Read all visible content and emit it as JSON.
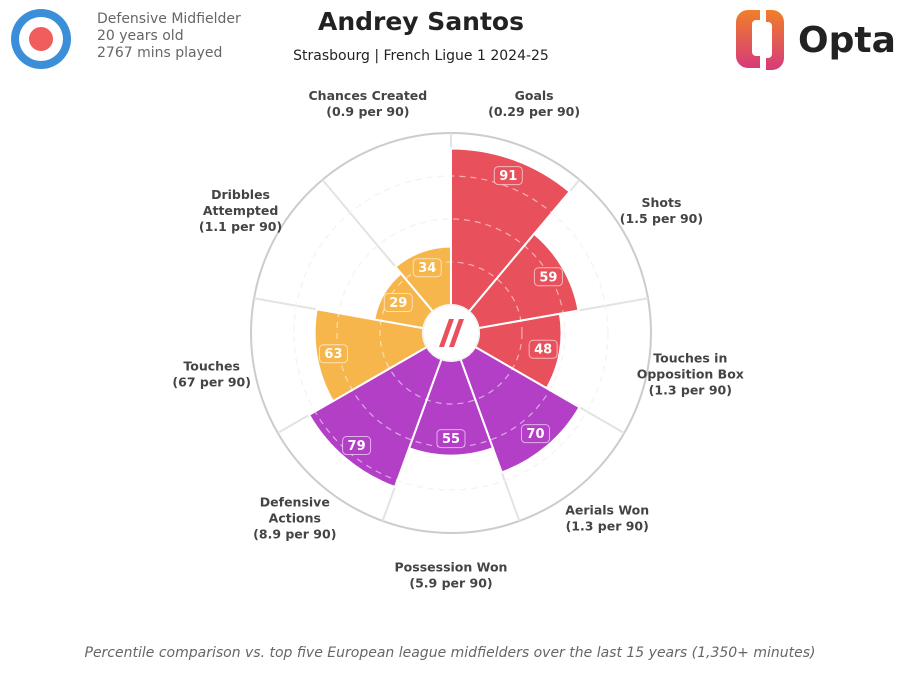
{
  "header": {
    "role": "Defensive Midfielder",
    "age": "20 years old",
    "minutes": "2767 mins played",
    "brand": "Opta"
  },
  "chart_data": {
    "type": "pizza",
    "title": "Andrey Santos",
    "subtitle": "Strasbourg | French Ligue 1 2024-25",
    "categories": [
      {
        "label": [
          "Goals"
        ],
        "sub": "(0.29 per 90)"
      },
      {
        "label": [
          "Shots"
        ],
        "sub": "(1.5 per 90)"
      },
      {
        "label": [
          "Touches in",
          "Opposition Box"
        ],
        "sub": "(1.3 per 90)"
      },
      {
        "label": [
          "Aerials Won"
        ],
        "sub": "(1.3 per 90)"
      },
      {
        "label": [
          "Possession Won"
        ],
        "sub": "(5.9 per 90)"
      },
      {
        "label": [
          "Defensive",
          "Actions"
        ],
        "sub": "(8.9 per 90)"
      },
      {
        "label": [
          "Touches"
        ],
        "sub": "(67 per 90)"
      },
      {
        "label": [
          "Dribbles",
          "Attempted"
        ],
        "sub": "(1.1 per 90)"
      },
      {
        "label": [
          "Chances Created"
        ],
        "sub": "(0.9 per 90)"
      }
    ],
    "values": [
      91,
      59,
      48,
      70,
      55,
      79,
      63,
      29,
      34
    ],
    "colors": [
      "#e8505b",
      "#e8505b",
      "#e8505b",
      "#b23fc6",
      "#b23fc6",
      "#b23fc6",
      "#f6b64c",
      "#f6b64c",
      "#f6b64c"
    ],
    "ylim": [
      0,
      100
    ],
    "yticks": [
      25,
      50,
      75,
      100
    ],
    "note": "Percentile comparison vs. top five European league midfielders over the last 15 years (1,350+ minutes)"
  }
}
